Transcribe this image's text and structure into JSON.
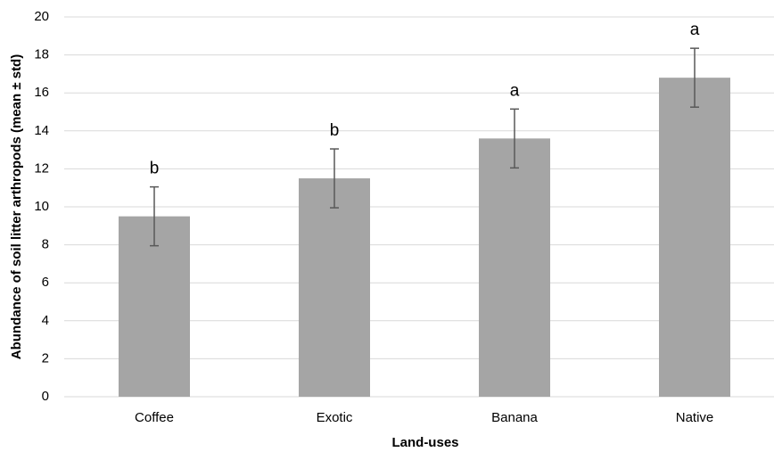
{
  "chart_data": {
    "type": "bar",
    "categories": [
      "Coffee",
      "Exotic",
      "Banana",
      "Native"
    ],
    "values": [
      9.5,
      11.5,
      13.6,
      16.8
    ],
    "errors": [
      1.55,
      1.55,
      1.55,
      1.55
    ],
    "annotations": [
      "b",
      "b",
      "a",
      "a"
    ],
    "color": "#a5a5a5",
    "error_color": "#595959",
    "xlabel": "Land-uses",
    "ylabel": "Abundance of soil litter arthropods (mean ± std)",
    "ylim": [
      0,
      20
    ],
    "yticks": [
      0,
      2,
      4,
      6,
      8,
      10,
      12,
      14,
      16,
      18,
      20
    ],
    "grid": true
  }
}
